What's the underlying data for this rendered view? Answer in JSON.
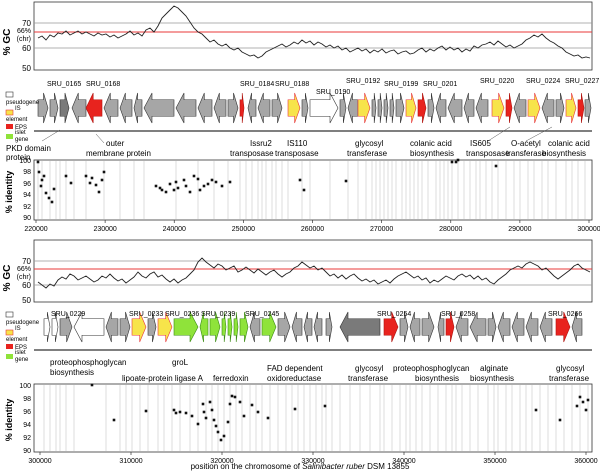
{
  "colors": {
    "gc_line": "#222222",
    "chr_line": "#e8383a",
    "pseudogene": "#ffffff",
    "is_element": "#f7e44a",
    "is_element_border": "#e8383a",
    "eps": "#e8231e",
    "islet": "#8fe33a",
    "gene_default": "#a6a6a6",
    "gene_dark": "#7a7a7a",
    "identity_bar": "#c8c8c8"
  },
  "legend": {
    "pseudogene": "pseudogene",
    "is_element": "IS element",
    "eps": "EPS",
    "islet_gene": "islet gene"
  },
  "panels": [
    {
      "id": "top",
      "gc_axis_label": "% GC",
      "gc_ticks": [
        "70",
        "66%\n(chr)",
        "60",
        "50"
      ],
      "identity_axis_label": "% identity",
      "identity_ticks": [
        "100",
        "98",
        "96",
        "94",
        "92",
        "90"
      ],
      "x_ticks": [
        "220000",
        "230000",
        "240000",
        "250000",
        "260000",
        "270000",
        "280000",
        "290000",
        "300000"
      ],
      "gene_ids": [
        "SRU_0165",
        "SRU_0168",
        "SRU_0184",
        "SRU_0188",
        "SRU_0190",
        "SRU_0192",
        "SRU_0199",
        "SRU_0201",
        "SRU_0220",
        "SRU_0224",
        "SRU_0227"
      ],
      "annotations": [
        "PKD domain\nprotein",
        "outer\nmembrane protein",
        "Issru2\ntransposase",
        "IS110\ntransposase",
        "glycosyl\ntransferase",
        "colanic acid\nbiosynthesis",
        "IS605\ntransposase",
        "O-acetyl\ntransferase",
        "colanic acid\nbiosynthesis"
      ]
    },
    {
      "id": "bottom",
      "gc_axis_label": "% GC",
      "gc_ticks": [
        "70",
        "66%\n(chr)",
        "60",
        "50"
      ],
      "identity_axis_label": "% identity",
      "identity_ticks": [
        "100",
        "98",
        "96",
        "94",
        "92",
        "90"
      ],
      "x_ticks": [
        "300000",
        "310000",
        "320000",
        "330000",
        "340000",
        "350000",
        "360000"
      ],
      "gene_ids": [
        "SRU_0229",
        "SRU_0233",
        "SRU_0236",
        "SRU_0239",
        "SRU_0245",
        "SRU_0254",
        "SRU_0258",
        "SRU_0266"
      ],
      "annotations": [
        "proteophosphoglycan\nbiosynthesis",
        "lipoate-protein ligase A",
        "groL",
        "ferredoxin",
        "FAD dependent\noxidoreductase",
        "glycosyl\ntransferase",
        "proteophosphoglycan\nbiosynthesis",
        "alginate\nbiosynthesis",
        "glycosyl\ntransferase"
      ]
    }
  ],
  "caption_prefix": "position on the chromosome of ",
  "caption_species": "Salinibacter ruber",
  "caption_strain": " DSM 13855"
}
